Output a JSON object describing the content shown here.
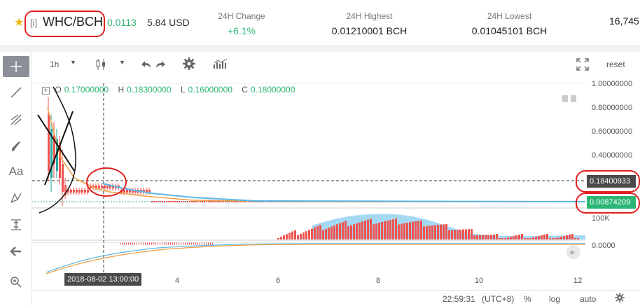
{
  "header": {
    "star_icon": "star-icon",
    "pair_tag": "[i]",
    "pair": "WHC/BCH",
    "last_price": "0.0113",
    "usd_price": "5.84 USD",
    "stats": [
      {
        "label": "24H Change",
        "value": "+6.1%"
      },
      {
        "label": "24H Highest",
        "value": "0.01210001 BCH"
      },
      {
        "label": "24H Lowest",
        "value": "0.01045101 BCH"
      },
      {
        "label": "",
        "value": "16,745"
      }
    ]
  },
  "toolbar": {
    "interval": "1h",
    "reset": "reset"
  },
  "ohlc": {
    "o_label": "O",
    "o": "0.17000000",
    "h_label": "H",
    "h": "0.18300000",
    "l_label": "L",
    "l": "0.16000000",
    "c_label": "C",
    "c": "0.18000000"
  },
  "y_axis": {
    "ticks": [
      "1.00000000",
      "0.80000000",
      "0.60000000",
      "0.40000000"
    ],
    "crosshair_price": "0.18400933",
    "last_price": "0.00874209",
    "volume_tick": "100K",
    "macd_tick": "0.0000"
  },
  "x_axis": {
    "cursor_label": "2018-08-02 13:00:00",
    "ticks": [
      "4",
      "6",
      "8",
      "10",
      "12"
    ]
  },
  "bottom": {
    "time": "22:59:31",
    "timezone": "(UTC+8)",
    "percent": "%",
    "log": "log",
    "auto": "auto"
  },
  "colors": {
    "up": "#26a69a",
    "down": "#ef5350",
    "accent_green": "#2bb673",
    "annotation_red": "#e02020"
  }
}
